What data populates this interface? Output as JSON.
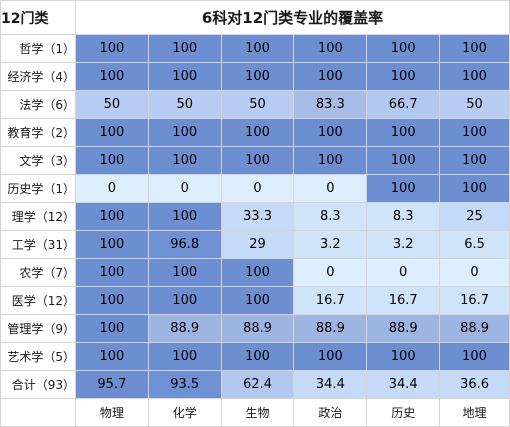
{
  "corner_label": "12门类",
  "title": "6科对12门类专业的覆盖率",
  "colors": {
    "c100": "#6d8fd2",
    "c88_9": "#9eb5e2",
    "c93_5": "#6f91d3",
    "c80": "#a8bce6",
    "c60": "#b3c8ee",
    "c50": "#b7ccf0",
    "c30": "#c5daf6",
    "c_low": "#cfe4f9",
    "c0": "#ddeefe"
  },
  "columns": [
    "物理",
    "化学",
    "生物",
    "政治",
    "历史",
    "地理"
  ],
  "rows": [
    {
      "label": "哲学（1）",
      "values": [
        "100",
        "100",
        "100",
        "100",
        "100",
        "100"
      ],
      "colors": [
        "c100",
        "c100",
        "c100",
        "c100",
        "c100",
        "c100"
      ]
    },
    {
      "label": "经济学（4）",
      "values": [
        "100",
        "100",
        "100",
        "100",
        "100",
        "100"
      ],
      "colors": [
        "c100",
        "c100",
        "c100",
        "c100",
        "c100",
        "c100"
      ]
    },
    {
      "label": "法学（6）",
      "values": [
        "50",
        "50",
        "50",
        "83.3",
        "66.7",
        "50"
      ],
      "colors": [
        "c50",
        "c50",
        "c50",
        "c80",
        "c60",
        "c50"
      ]
    },
    {
      "label": "教育学（2）",
      "values": [
        "100",
        "100",
        "100",
        "100",
        "100",
        "100"
      ],
      "colors": [
        "c100",
        "c100",
        "c100",
        "c100",
        "c100",
        "c100"
      ]
    },
    {
      "label": "文学（3）",
      "values": [
        "100",
        "100",
        "100",
        "100",
        "100",
        "100"
      ],
      "colors": [
        "c100",
        "c100",
        "c100",
        "c100",
        "c100",
        "c100"
      ]
    },
    {
      "label": "历史学（1）",
      "values": [
        "0",
        "0",
        "0",
        "0",
        "100",
        "100"
      ],
      "colors": [
        "c0",
        "c0",
        "c0",
        "c0",
        "c100",
        "c100"
      ]
    },
    {
      "label": "理学（12）",
      "values": [
        "100",
        "100",
        "33.3",
        "8.3",
        "8.3",
        "25"
      ],
      "colors": [
        "c100",
        "c100",
        "c30",
        "c_low",
        "c_low",
        "c30"
      ]
    },
    {
      "label": "工学（31）",
      "values": [
        "100",
        "96.8",
        "29",
        "3.2",
        "3.2",
        "6.5"
      ],
      "colors": [
        "c100",
        "c93_5",
        "c30",
        "c_low",
        "c_low",
        "c_low"
      ]
    },
    {
      "label": "农学（7）",
      "values": [
        "100",
        "100",
        "100",
        "0",
        "0",
        "0"
      ],
      "colors": [
        "c100",
        "c100",
        "c100",
        "c0",
        "c0",
        "c0"
      ]
    },
    {
      "label": "医学（12）",
      "values": [
        "100",
        "100",
        "100",
        "16.7",
        "16.7",
        "16.7"
      ],
      "colors": [
        "c100",
        "c100",
        "c100",
        "c_low",
        "c_low",
        "c_low"
      ]
    },
    {
      "label": "管理学（9）",
      "values": [
        "100",
        "88.9",
        "88.9",
        "88.9",
        "88.9",
        "88.9"
      ],
      "colors": [
        "c100",
        "c88_9",
        "c88_9",
        "c88_9",
        "c88_9",
        "c88_9"
      ]
    },
    {
      "label": "艺术学（5）",
      "values": [
        "100",
        "100",
        "100",
        "100",
        "100",
        "100"
      ],
      "colors": [
        "c100",
        "c100",
        "c100",
        "c100",
        "c100",
        "c100"
      ]
    },
    {
      "label": "合计（93）",
      "values": [
        "95.7",
        "93.5",
        "62.4",
        "34.4",
        "34.4",
        "36.6"
      ],
      "colors": [
        "c100",
        "c93_5",
        "c60",
        "c30",
        "c30",
        "c30"
      ]
    }
  ]
}
